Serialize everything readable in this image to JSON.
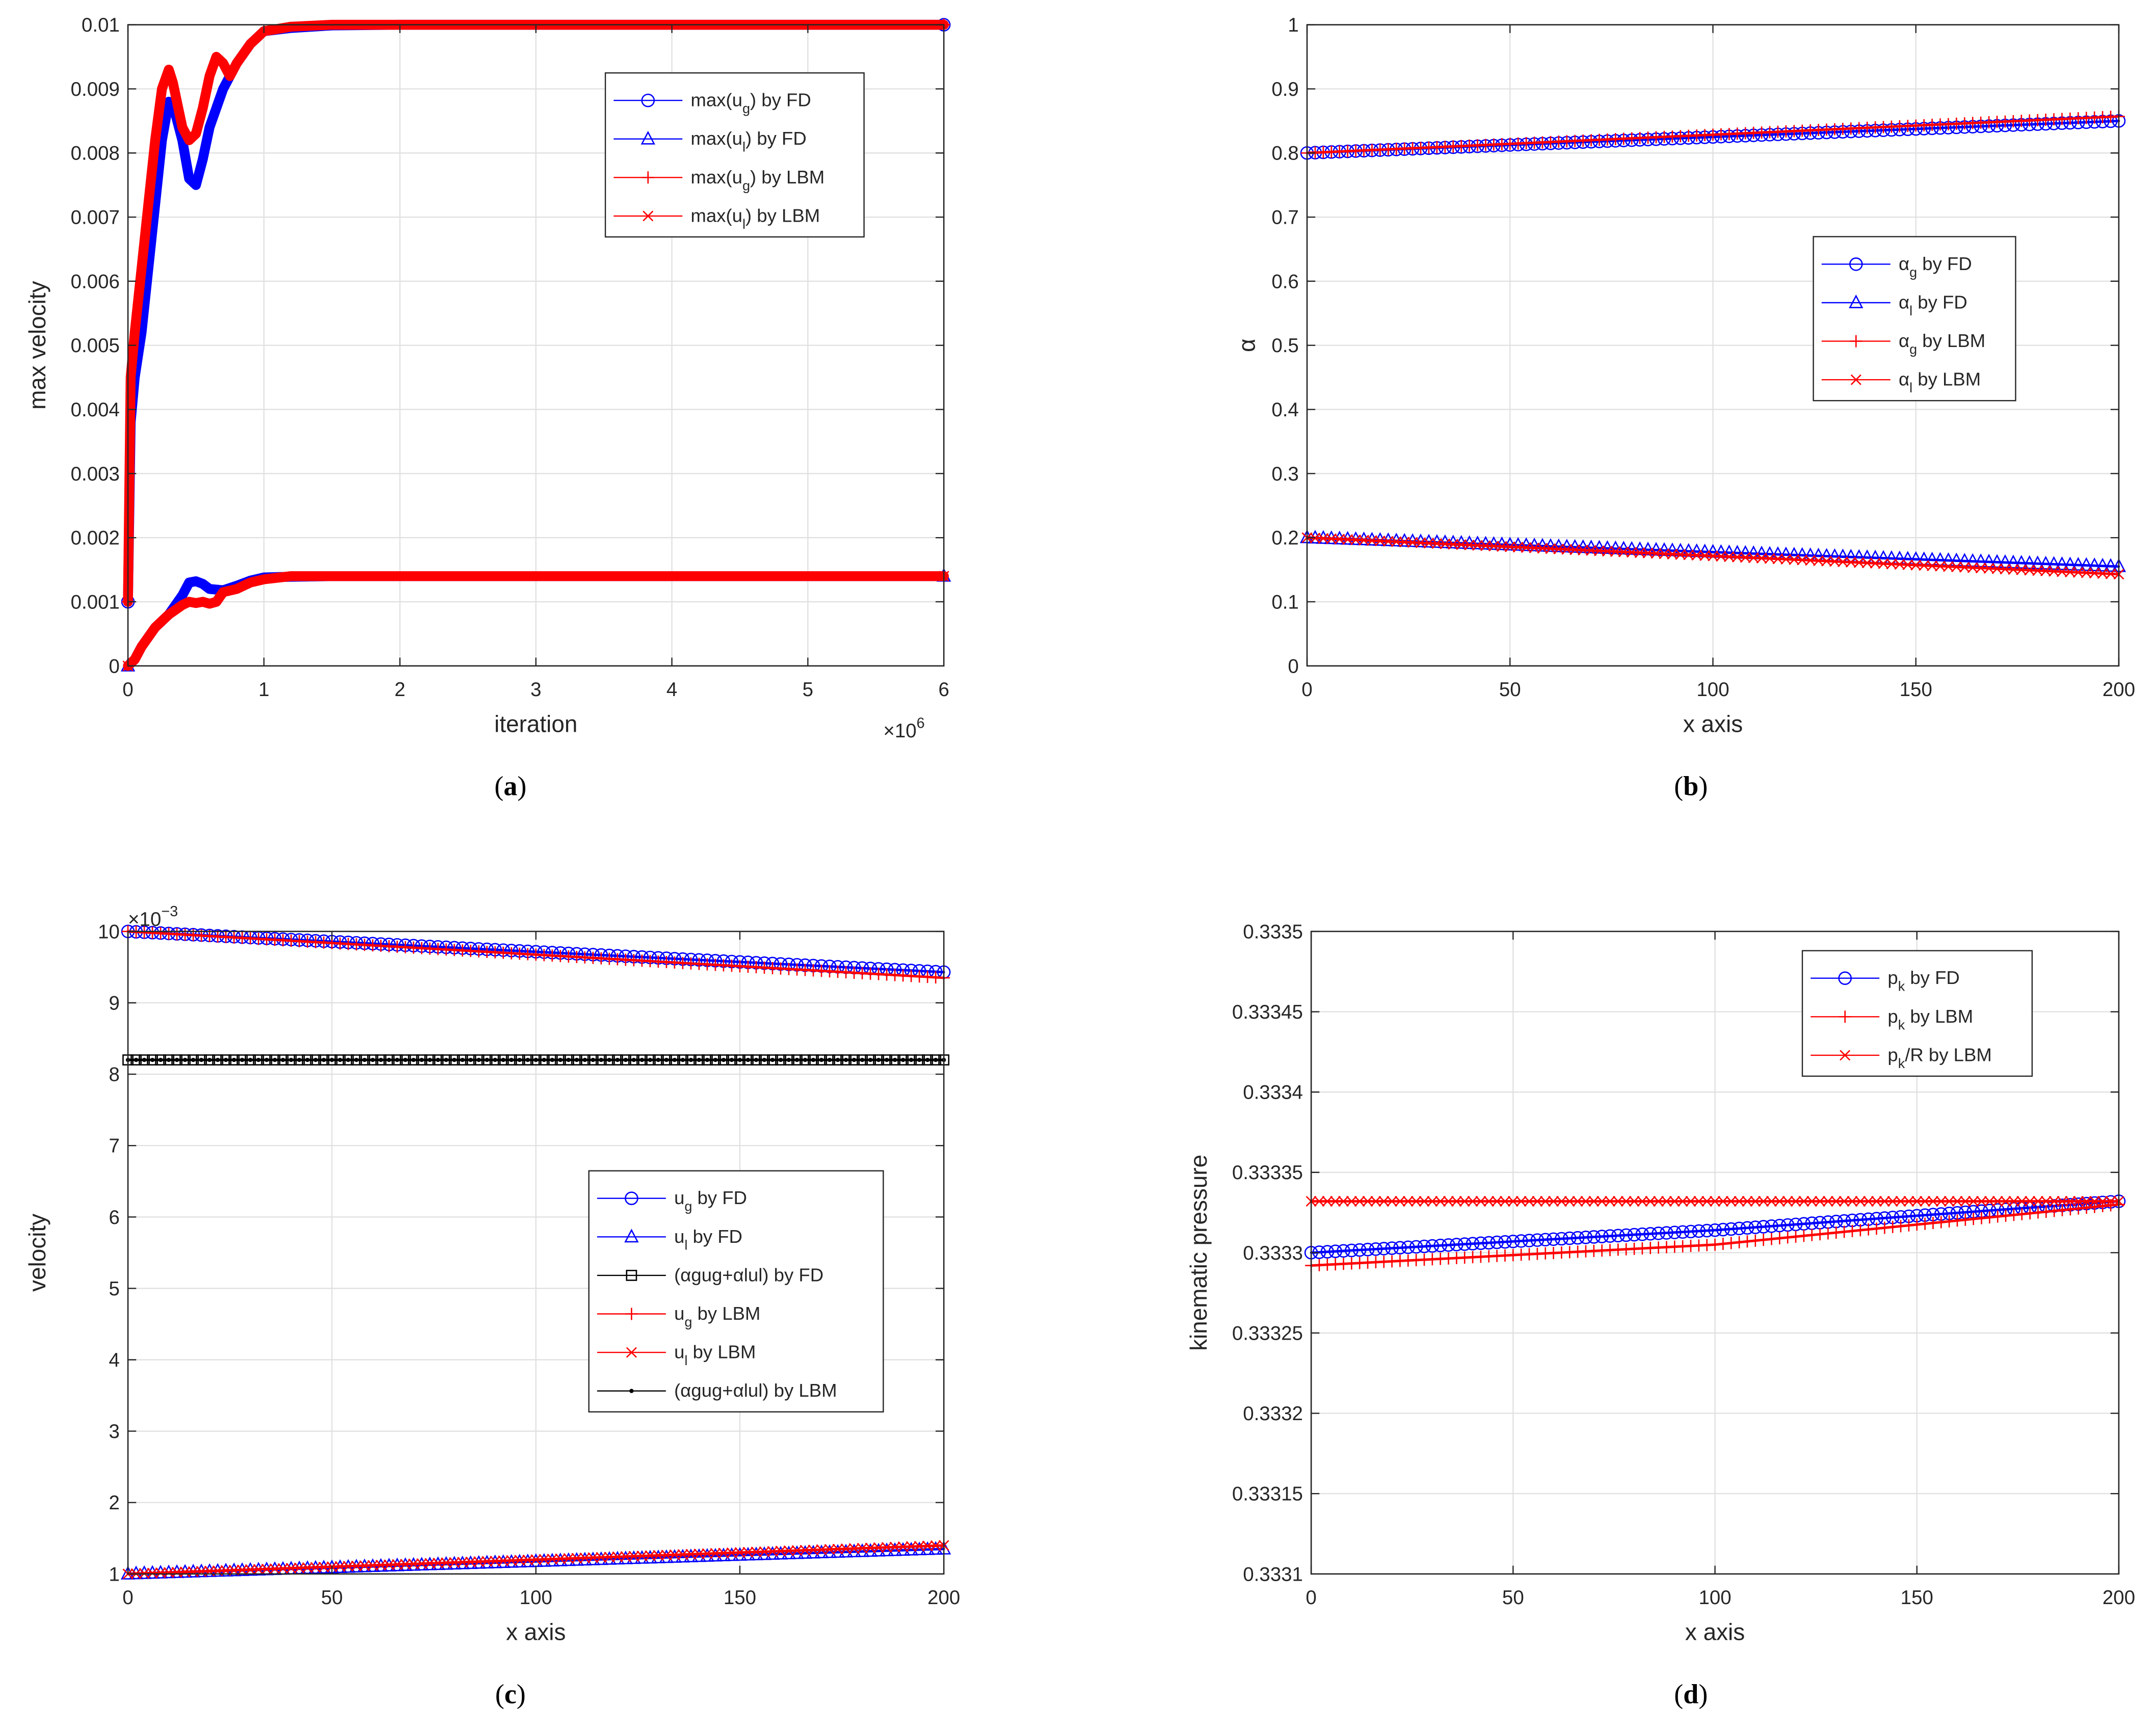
{
  "chart_data": [
    {
      "id": "a",
      "type": "line",
      "caption": "a",
      "xlabel": "iteration",
      "ylabel": "max velocity",
      "x_multiplier": "×10",
      "x_multiplier_exp": "6",
      "xlim": [
        0,
        6
      ],
      "ylim": [
        0,
        0.01
      ],
      "xticks": [
        0,
        1,
        2,
        3,
        4,
        5,
        6
      ],
      "xtick_labels": [
        "0",
        "1",
        "2",
        "3",
        "4",
        "5",
        "6"
      ],
      "yticks": [
        0,
        0.001,
        0.002,
        0.003,
        0.004,
        0.005,
        0.006,
        0.007,
        0.008,
        0.009,
        0.01
      ],
      "ytick_labels": [
        "0",
        "0.001",
        "0.002",
        "0.003",
        "0.004",
        "0.005",
        "0.006",
        "0.007",
        "0.008",
        "0.009",
        "0.01"
      ],
      "grid": true,
      "legend_position": "top-right",
      "series": [
        {
          "name": "max(u_g) by FD",
          "legend": {
            "pre": "max(u",
            "sub": "g",
            "post": ") by FD"
          },
          "color": "#0000ff",
          "marker": "circle",
          "width": 8,
          "x": [
            0,
            0.02,
            0.05,
            0.1,
            0.15,
            0.2,
            0.25,
            0.3,
            0.35,
            0.4,
            0.45,
            0.5,
            0.55,
            0.6,
            0.7,
            0.8,
            0.9,
            1.0,
            1.2,
            1.5,
            2,
            3,
            4,
            5,
            6
          ],
          "y": [
            0.001,
            0.0038,
            0.0045,
            0.0052,
            0.0062,
            0.0072,
            0.0082,
            0.0088,
            0.0086,
            0.0082,
            0.0076,
            0.0075,
            0.0079,
            0.0084,
            0.009,
            0.0094,
            0.0097,
            0.0099,
            0.00995,
            0.00999,
            0.01,
            0.01,
            0.01,
            0.01,
            0.01
          ]
        },
        {
          "name": "max(u_l) by FD",
          "legend": {
            "pre": "max(u",
            "sub": "l",
            "post": ") by FD"
          },
          "color": "#0000ff",
          "marker": "triangle",
          "width": 8,
          "x": [
            0,
            0.05,
            0.1,
            0.2,
            0.3,
            0.4,
            0.45,
            0.5,
            0.55,
            0.6,
            0.7,
            0.8,
            0.9,
            1.0,
            1.2,
            1.5,
            2,
            3,
            4,
            5,
            6
          ],
          "y": [
            0,
            0.0001,
            0.0003,
            0.0006,
            0.0008,
            0.0011,
            0.0013,
            0.00132,
            0.00128,
            0.0012,
            0.00118,
            0.00125,
            0.00133,
            0.00138,
            0.00139,
            0.0014,
            0.0014,
            0.0014,
            0.0014,
            0.0014,
            0.0014
          ]
        },
        {
          "name": "max(u_g) by LBM",
          "legend": {
            "pre": "max(u",
            "sub": "g",
            "post": ") by LBM"
          },
          "color": "#ff0000",
          "marker": "plus",
          "width": 8,
          "x": [
            0,
            0.02,
            0.05,
            0.1,
            0.15,
            0.2,
            0.25,
            0.3,
            0.33,
            0.36,
            0.4,
            0.45,
            0.5,
            0.55,
            0.6,
            0.65,
            0.7,
            0.75,
            0.8,
            0.9,
            1.0,
            1.2,
            1.5,
            2,
            3,
            4,
            5,
            6
          ],
          "y": [
            0.001,
            0.0045,
            0.0052,
            0.0062,
            0.0072,
            0.0082,
            0.009,
            0.0093,
            0.0091,
            0.0088,
            0.0084,
            0.0082,
            0.0083,
            0.0087,
            0.0092,
            0.0095,
            0.0094,
            0.0092,
            0.0094,
            0.0097,
            0.0099,
            0.00997,
            0.01,
            0.01,
            0.01,
            0.01,
            0.01,
            0.01
          ]
        },
        {
          "name": "max(u_l) by LBM",
          "legend": {
            "pre": "max(u",
            "sub": "l",
            "post": ") by LBM"
          },
          "color": "#ff0000",
          "marker": "x",
          "width": 8,
          "x": [
            0,
            0.05,
            0.1,
            0.2,
            0.3,
            0.4,
            0.45,
            0.5,
            0.55,
            0.6,
            0.65,
            0.7,
            0.8,
            0.9,
            1.0,
            1.2,
            1.5,
            2,
            3,
            4,
            5,
            6
          ],
          "y": [
            0,
            0.0001,
            0.0003,
            0.0006,
            0.0008,
            0.00095,
            0.001,
            0.00098,
            0.001,
            0.00097,
            0.001,
            0.00115,
            0.0012,
            0.0013,
            0.00135,
            0.0014,
            0.0014,
            0.0014,
            0.0014,
            0.0014,
            0.0014,
            0.0014
          ]
        }
      ]
    },
    {
      "id": "b",
      "type": "line",
      "caption": "b",
      "xlabel": "x axis",
      "ylabel": "α",
      "xlim": [
        0,
        200
      ],
      "ylim": [
        0,
        1
      ],
      "xticks": [
        0,
        50,
        100,
        150,
        200
      ],
      "xtick_labels": [
        "0",
        "50",
        "100",
        "150",
        "200"
      ],
      "yticks": [
        0,
        0.1,
        0.2,
        0.3,
        0.4,
        0.5,
        0.6,
        0.7,
        0.8,
        0.9,
        1
      ],
      "ytick_labels": [
        "0",
        "0.1",
        "0.2",
        "0.3",
        "0.4",
        "0.5",
        "0.6",
        "0.7",
        "0.8",
        "0.9",
        "1"
      ],
      "grid": true,
      "legend_position": "middle-right",
      "series": [
        {
          "name": "α_g by FD",
          "legend": {
            "pre": "α",
            "sub": "g",
            "post": " by FD"
          },
          "color": "#0000ff",
          "marker": "circle",
          "width": 2,
          "x": [
            0,
            200
          ],
          "y": [
            0.8,
            0.85
          ]
        },
        {
          "name": "α_l by FD",
          "legend": {
            "pre": "α",
            "sub": "l",
            "post": " by FD"
          },
          "color": "#0000ff",
          "marker": "triangle",
          "width": 2,
          "x": [
            0,
            200
          ],
          "y": [
            0.2,
            0.155
          ]
        },
        {
          "name": "α_g by LBM",
          "legend": {
            "pre": "α",
            "sub": "g",
            "post": " by LBM"
          },
          "color": "#ff0000",
          "marker": "plus",
          "width": 2,
          "x": [
            0,
            200
          ],
          "y": [
            0.8,
            0.857
          ]
        },
        {
          "name": "α_l by LBM",
          "legend": {
            "pre": "α",
            "sub": "l",
            "post": " by LBM"
          },
          "color": "#ff0000",
          "marker": "x",
          "width": 2,
          "x": [
            0,
            200
          ],
          "y": [
            0.2,
            0.143
          ]
        }
      ]
    },
    {
      "id": "c",
      "type": "line",
      "caption": "c",
      "xlabel": "x axis",
      "ylabel": "velocity",
      "y_multiplier": "×10",
      "y_multiplier_exp": "−3",
      "xlim": [
        0,
        200
      ],
      "ylim": [
        1,
        10
      ],
      "xticks": [
        0,
        50,
        100,
        150,
        200
      ],
      "xtick_labels": [
        "0",
        "50",
        "100",
        "150",
        "200"
      ],
      "yticks": [
        1,
        2,
        3,
        4,
        5,
        6,
        7,
        8,
        9,
        10
      ],
      "ytick_labels": [
        "1",
        "2",
        "3",
        "4",
        "5",
        "6",
        "7",
        "8",
        "9",
        "10"
      ],
      "grid": true,
      "legend_position": "middle-right",
      "series": [
        {
          "name": "u_g by FD",
          "legend": {
            "pre": "u",
            "sub": "g",
            "post": " by FD"
          },
          "color": "#0000ff",
          "marker": "circle",
          "width": 2,
          "x": [
            0,
            200
          ],
          "y": [
            10.0,
            9.43
          ]
        },
        {
          "name": "u_l by FD",
          "legend": {
            "pre": "u",
            "sub": "l",
            "post": " by FD"
          },
          "color": "#0000ff",
          "marker": "triangle",
          "width": 2,
          "x": [
            0,
            200
          ],
          "y": [
            1.0,
            1.35
          ]
        },
        {
          "name": "(α_g u_g + α_l u_l) by FD",
          "legend": {
            "text": "(αgug+αlul) by FD"
          },
          "color": "#000000",
          "marker": "square",
          "width": 2,
          "x": [
            0,
            200
          ],
          "y": [
            8.2,
            8.2
          ]
        },
        {
          "name": "u_g by LBM",
          "legend": {
            "pre": "u",
            "sub": "g",
            "post": " by LBM"
          },
          "color": "#ff0000",
          "marker": "plus",
          "width": 2,
          "x": [
            0,
            200
          ],
          "y": [
            10.0,
            9.35
          ]
        },
        {
          "name": "u_l by LBM",
          "legend": {
            "pre": "u",
            "sub": "l",
            "post": " by LBM"
          },
          "color": "#ff0000",
          "marker": "x",
          "width": 2,
          "x": [
            0,
            200
          ],
          "y": [
            1.0,
            1.4
          ]
        },
        {
          "name": "(α_g u_g + α_l u_l) by LBM",
          "legend": {
            "text": "(αgug+αlul) by LBM"
          },
          "color": "#000000",
          "marker": "dot",
          "width": 2,
          "x": [
            0,
            200
          ],
          "y": [
            8.2,
            8.2
          ]
        }
      ]
    },
    {
      "id": "d",
      "type": "line",
      "caption": "d",
      "xlabel": "x axis",
      "ylabel": "kinematic pressure",
      "xlim": [
        0,
        200
      ],
      "ylim": [
        0.3331,
        0.3335
      ],
      "xticks": [
        0,
        50,
        100,
        150,
        200
      ],
      "xtick_labels": [
        "0",
        "50",
        "100",
        "150",
        "200"
      ],
      "yticks": [
        0.3331,
        0.33315,
        0.3332,
        0.33325,
        0.3333,
        0.33335,
        0.3334,
        0.33345,
        0.3335
      ],
      "ytick_labels": [
        "0.3331",
        "0.33315",
        "0.3332",
        "0.33325",
        "0.3333",
        "0.33335",
        "0.3334",
        "0.33345",
        "0.3335"
      ],
      "grid": true,
      "legend_position": "top-right",
      "series": [
        {
          "name": "p_k by FD",
          "legend": {
            "pre": "p",
            "sub": "k",
            "post": " by FD"
          },
          "color": "#0000ff",
          "marker": "circle",
          "width": 2,
          "x": [
            0,
            100,
            200
          ],
          "y": [
            0.3333,
            0.333314,
            0.333332
          ]
        },
        {
          "name": "p_k by LBM",
          "legend": {
            "pre": "p",
            "sub": "k",
            "post": " by LBM"
          },
          "color": "#ff0000",
          "marker": "plus",
          "width": 2,
          "x": [
            0,
            100,
            200
          ],
          "y": [
            0.333292,
            0.333305,
            0.33333
          ]
        },
        {
          "name": "p_k/R by LBM",
          "legend": {
            "pre": "p",
            "sub": "k",
            "post": "/R by LBM"
          },
          "color": "#ff0000",
          "marker": "x",
          "width": 2,
          "x": [
            0,
            200
          ],
          "y": [
            0.333332,
            0.333332
          ]
        }
      ]
    }
  ]
}
